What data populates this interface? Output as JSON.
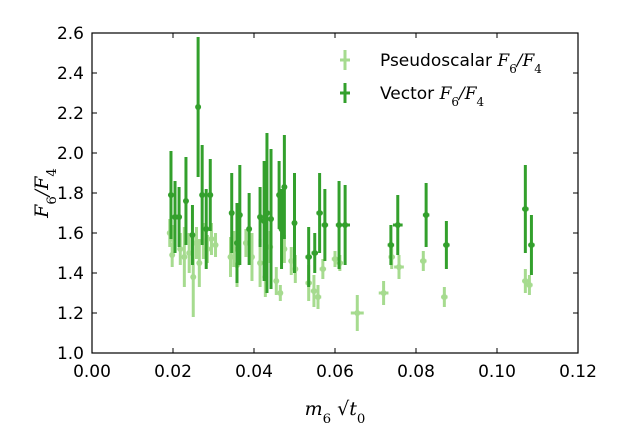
{
  "chart_data": {
    "type": "scatter",
    "title": "",
    "xlabel": "m6 √t0",
    "ylabel": "F6/F4",
    "xlim": [
      0.0,
      0.12
    ],
    "ylim": [
      1.0,
      2.6
    ],
    "xticks": [
      "0.00",
      "0.02",
      "0.04",
      "0.06",
      "0.08",
      "0.10",
      "0.12"
    ],
    "yticks": [
      "1.0",
      "1.2",
      "1.4",
      "1.6",
      "1.8",
      "2.0",
      "2.2",
      "2.4",
      "2.6"
    ],
    "legend_position": "top-right",
    "series": [
      {
        "name": "Pseudoscalar F6/F4",
        "color": "#a6db8f",
        "points": [
          {
            "x": 0.0192,
            "y": 1.6,
            "yerr": 0.07,
            "xerr": 0.0005
          },
          {
            "x": 0.0198,
            "y": 1.49,
            "yerr": 0.06,
            "xerr": 0.0005
          },
          {
            "x": 0.02,
            "y": 1.57,
            "yerr": 0.07,
            "xerr": 0.0005
          },
          {
            "x": 0.0218,
            "y": 1.52,
            "yerr": 0.08,
            "xerr": 0.0005
          },
          {
            "x": 0.0228,
            "y": 1.48,
            "yerr": 0.15,
            "xerr": 0.0006
          },
          {
            "x": 0.024,
            "y": 1.5,
            "yerr": 0.1,
            "xerr": 0.0006
          },
          {
            "x": 0.025,
            "y": 1.38,
            "yerr": 0.2,
            "xerr": 0.0006
          },
          {
            "x": 0.0258,
            "y": 1.55,
            "yerr": 0.08,
            "xerr": 0.0006
          },
          {
            "x": 0.0265,
            "y": 1.45,
            "yerr": 0.12,
            "xerr": 0.0006
          },
          {
            "x": 0.0275,
            "y": 1.56,
            "yerr": 0.09,
            "xerr": 0.0006
          },
          {
            "x": 0.0285,
            "y": 1.52,
            "yerr": 0.07,
            "xerr": 0.0006
          },
          {
            "x": 0.0295,
            "y": 1.57,
            "yerr": 0.08,
            "xerr": 0.0006
          },
          {
            "x": 0.0305,
            "y": 1.54,
            "yerr": 0.06,
            "xerr": 0.0006
          },
          {
            "x": 0.0342,
            "y": 1.48,
            "yerr": 0.1,
            "xerr": 0.0006
          },
          {
            "x": 0.035,
            "y": 1.52,
            "yerr": 0.09,
            "xerr": 0.0006
          },
          {
            "x": 0.0358,
            "y": 1.44,
            "yerr": 0.11,
            "xerr": 0.0006
          },
          {
            "x": 0.038,
            "y": 1.55,
            "yerr": 0.07,
            "xerr": 0.0006
          },
          {
            "x": 0.0395,
            "y": 1.48,
            "yerr": 0.12,
            "xerr": 0.0006
          },
          {
            "x": 0.0415,
            "y": 1.45,
            "yerr": 0.12,
            "xerr": 0.0006
          },
          {
            "x": 0.0428,
            "y": 1.38,
            "yerr": 0.1,
            "xerr": 0.0006
          },
          {
            "x": 0.044,
            "y": 1.53,
            "yerr": 0.08,
            "xerr": 0.0006
          },
          {
            "x": 0.0455,
            "y": 1.36,
            "yerr": 0.07,
            "xerr": 0.0006
          },
          {
            "x": 0.0465,
            "y": 1.3,
            "yerr": 0.04,
            "xerr": 0.0006
          },
          {
            "x": 0.0475,
            "y": 1.52,
            "yerr": 0.07,
            "xerr": 0.0006
          },
          {
            "x": 0.0492,
            "y": 1.46,
            "yerr": 0.07,
            "xerr": 0.0006
          },
          {
            "x": 0.0502,
            "y": 1.42,
            "yerr": 0.07,
            "xerr": 0.0006
          },
          {
            "x": 0.0535,
            "y": 1.35,
            "yerr": 0.09,
            "xerr": 0.0008
          },
          {
            "x": 0.0548,
            "y": 1.31,
            "yerr": 0.08,
            "xerr": 0.0008
          },
          {
            "x": 0.0558,
            "y": 1.28,
            "yerr": 0.06,
            "xerr": 0.0008
          },
          {
            "x": 0.057,
            "y": 1.42,
            "yerr": 0.05,
            "xerr": 0.0008
          },
          {
            "x": 0.06,
            "y": 1.47,
            "yerr": 0.04,
            "xerr": 0.0008
          },
          {
            "x": 0.0612,
            "y": 1.45,
            "yerr": 0.04,
            "xerr": 0.0008
          },
          {
            "x": 0.0655,
            "y": 1.2,
            "yerr": 0.09,
            "xerr": 0.0016
          },
          {
            "x": 0.072,
            "y": 1.3,
            "yerr": 0.06,
            "xerr": 0.0012
          },
          {
            "x": 0.074,
            "y": 1.48,
            "yerr": 0.06,
            "xerr": 0.0008
          },
          {
            "x": 0.0758,
            "y": 1.43,
            "yerr": 0.06,
            "xerr": 0.0012
          },
          {
            "x": 0.0818,
            "y": 1.46,
            "yerr": 0.05,
            "xerr": 0.0008
          },
          {
            "x": 0.087,
            "y": 1.28,
            "yerr": 0.05,
            "xerr": 0.0008
          },
          {
            "x": 0.107,
            "y": 1.36,
            "yerr": 0.06,
            "xerr": 0.0008
          },
          {
            "x": 0.108,
            "y": 1.34,
            "yerr": 0.05,
            "xerr": 0.0008
          }
        ]
      },
      {
        "name": "Vector F6/F4",
        "color": "#33a02c",
        "points": [
          {
            "x": 0.0195,
            "y": 1.79,
            "yerr": 0.22,
            "xerr": 0.0005
          },
          {
            "x": 0.0205,
            "y": 1.68,
            "yerr": 0.18,
            "xerr": 0.0005
          },
          {
            "x": 0.0215,
            "y": 1.68,
            "yerr": 0.15,
            "xerr": 0.0005
          },
          {
            "x": 0.0232,
            "y": 1.76,
            "yerr": 0.22,
            "xerr": 0.0006
          },
          {
            "x": 0.0248,
            "y": 1.59,
            "yerr": 0.15,
            "xerr": 0.0006
          },
          {
            "x": 0.0262,
            "y": 2.23,
            "yerr": 0.35,
            "xerr": 0.0006
          },
          {
            "x": 0.0272,
            "y": 1.79,
            "yerr": 0.25,
            "xerr": 0.0006
          },
          {
            "x": 0.0282,
            "y": 1.62,
            "yerr": 0.2,
            "xerr": 0.0006
          },
          {
            "x": 0.0292,
            "y": 1.79,
            "yerr": 0.18,
            "xerr": 0.0006
          },
          {
            "x": 0.0345,
            "y": 1.7,
            "yerr": 0.2,
            "xerr": 0.0006
          },
          {
            "x": 0.0358,
            "y": 1.55,
            "yerr": 0.2,
            "xerr": 0.0006
          },
          {
            "x": 0.0365,
            "y": 1.69,
            "yerr": 0.25,
            "xerr": 0.0006
          },
          {
            "x": 0.0388,
            "y": 1.62,
            "yerr": 0.18,
            "xerr": 0.0006
          },
          {
            "x": 0.0415,
            "y": 1.68,
            "yerr": 0.15,
            "xerr": 0.0006
          },
          {
            "x": 0.0425,
            "y": 1.66,
            "yerr": 0.3,
            "xerr": 0.0006
          },
          {
            "x": 0.0432,
            "y": 1.7,
            "yerr": 0.4,
            "xerr": 0.0006
          },
          {
            "x": 0.0442,
            "y": 1.67,
            "yerr": 0.35,
            "xerr": 0.0006
          },
          {
            "x": 0.0462,
            "y": 1.79,
            "yerr": 0.17,
            "xerr": 0.0006
          },
          {
            "x": 0.0468,
            "y": 1.62,
            "yerr": 0.2,
            "xerr": 0.0006
          },
          {
            "x": 0.0475,
            "y": 1.83,
            "yerr": 0.26,
            "xerr": 0.0006
          },
          {
            "x": 0.05,
            "y": 1.65,
            "yerr": 0.25,
            "xerr": 0.0006
          },
          {
            "x": 0.0535,
            "y": 1.48,
            "yerr": 0.15,
            "xerr": 0.0008
          },
          {
            "x": 0.055,
            "y": 1.5,
            "yerr": 0.1,
            "xerr": 0.0008
          },
          {
            "x": 0.0562,
            "y": 1.7,
            "yerr": 0.2,
            "xerr": 0.0008
          },
          {
            "x": 0.0575,
            "y": 1.64,
            "yerr": 0.18,
            "xerr": 0.0008
          },
          {
            "x": 0.061,
            "y": 1.64,
            "yerr": 0.22,
            "xerr": 0.0008
          },
          {
            "x": 0.0625,
            "y": 1.64,
            "yerr": 0.2,
            "xerr": 0.0012
          },
          {
            "x": 0.0738,
            "y": 1.54,
            "yerr": 0.1,
            "xerr": 0.0008
          },
          {
            "x": 0.0755,
            "y": 1.64,
            "yerr": 0.15,
            "xerr": 0.0012
          },
          {
            "x": 0.0825,
            "y": 1.69,
            "yerr": 0.16,
            "xerr": 0.0008
          },
          {
            "x": 0.0875,
            "y": 1.54,
            "yerr": 0.12,
            "xerr": 0.0008
          },
          {
            "x": 0.107,
            "y": 1.72,
            "yerr": 0.22,
            "xerr": 0.0008
          },
          {
            "x": 0.1085,
            "y": 1.54,
            "yerr": 0.15,
            "xerr": 0.0008
          }
        ]
      }
    ]
  }
}
